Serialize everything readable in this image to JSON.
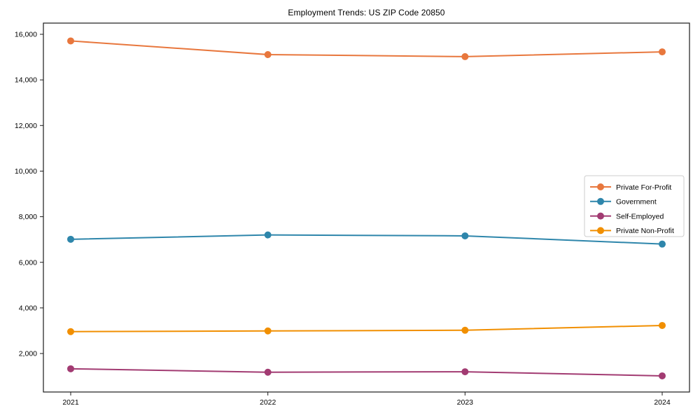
{
  "chart_data": {
    "type": "line",
    "title": "Employment Trends: US ZIP Code 20850",
    "xlabel": "",
    "ylabel": "",
    "x": [
      2021,
      2022,
      2023,
      2024
    ],
    "series": [
      {
        "name": "Private For-Profit",
        "color": "#E8773D",
        "values": [
          15710,
          15110,
          15020,
          15230
        ]
      },
      {
        "name": "Government",
        "color": "#2E86AB",
        "values": [
          7010,
          7200,
          7160,
          6800
        ]
      },
      {
        "name": "Self-Employed",
        "color": "#A23B72",
        "values": [
          1330,
          1180,
          1200,
          1020
        ]
      },
      {
        "name": "Private Non-Profit",
        "color": "#F18F01",
        "values": [
          2960,
          2990,
          3020,
          3230
        ]
      }
    ],
    "ylim": [
      312,
      16491
    ],
    "yticks": [
      2000,
      4000,
      6000,
      8000,
      10000,
      12000,
      14000,
      16000
    ],
    "grid": false,
    "legend_position": "right-middle",
    "axis_color": "#1a1a1a",
    "legend_border_color": "#cccccc"
  }
}
